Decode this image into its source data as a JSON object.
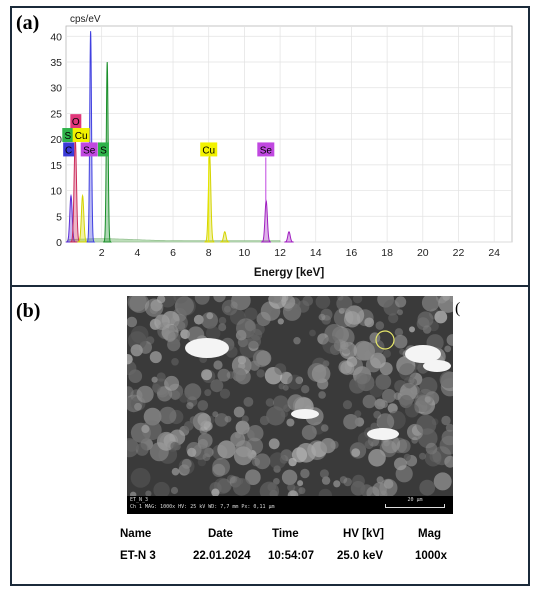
{
  "panel_a_label": "(a)",
  "panel_b_label": "(b)",
  "stray_paren": "(",
  "chart_data": {
    "type": "line",
    "title": "",
    "xlabel": "Energy [keV]",
    "ylabel": "cps/eV",
    "xlim": [
      0,
      25
    ],
    "ylim": [
      0,
      42
    ],
    "xticks": [
      2,
      4,
      6,
      8,
      10,
      12,
      14,
      16,
      18,
      20,
      22,
      24
    ],
    "yticks": [
      0,
      5,
      10,
      15,
      20,
      25,
      30,
      35,
      40
    ],
    "grid": true,
    "peaks": [
      {
        "element": "C",
        "x": 0.28,
        "y": 9,
        "color": "#5b2fd8"
      },
      {
        "element": "O",
        "x": 0.52,
        "y": 20,
        "color": "#cc2a5a"
      },
      {
        "element": "Cu",
        "x": 0.93,
        "y": 9,
        "color": "#d4d400"
      },
      {
        "element": "Se",
        "x": 1.38,
        "y": 41,
        "color": "#4040e0"
      },
      {
        "element": "S",
        "x": 2.31,
        "y": 35,
        "color": "#1a8f2a"
      },
      {
        "element": "Cu",
        "x": 8.05,
        "y": 17,
        "color": "#d4d400"
      },
      {
        "element": "Cu",
        "x": 8.9,
        "y": 2,
        "color": "#d4d400"
      },
      {
        "element": "Se",
        "x": 11.22,
        "y": 8,
        "color": "#a020c0"
      },
      {
        "element": "Se",
        "x": 12.5,
        "y": 2,
        "color": "#a020c0"
      }
    ],
    "element_labels": [
      {
        "text": "O",
        "x": 0.55,
        "y": 23.5,
        "color": "#e0367a"
      },
      {
        "text": "S",
        "x": 0.1,
        "y": 20.8,
        "color": "#2fb34a"
      },
      {
        "text": "Cu",
        "x": 0.85,
        "y": 20.8,
        "color": "#f2f200"
      },
      {
        "text": "C",
        "x": 0.15,
        "y": 18,
        "color": "#3a3ad8"
      },
      {
        "text": "Se",
        "x": 1.3,
        "y": 18,
        "color": "#c048e0"
      },
      {
        "text": "S",
        "x": 2.1,
        "y": 18,
        "color": "#2fb34a"
      },
      {
        "text": "Cu",
        "x": 8.0,
        "y": 18,
        "color": "#f2f200"
      },
      {
        "text": "Se",
        "x": 11.2,
        "y": 18,
        "color": "#c048e0"
      }
    ]
  },
  "sem": {
    "line1": "ET_N_3",
    "line2": "Ch 1   MAG: 1000x   HV: 25 kV   WD: 7,7 mm   Px: 0,11 µm",
    "scale": "20 µm"
  },
  "info": {
    "headers": [
      "Name",
      "Date",
      "Time",
      "HV [kV]",
      "Mag"
    ],
    "values": [
      "ET-N 3",
      "22.01.2024",
      "10:54:07",
      "25.0 keV",
      "1000x"
    ]
  }
}
